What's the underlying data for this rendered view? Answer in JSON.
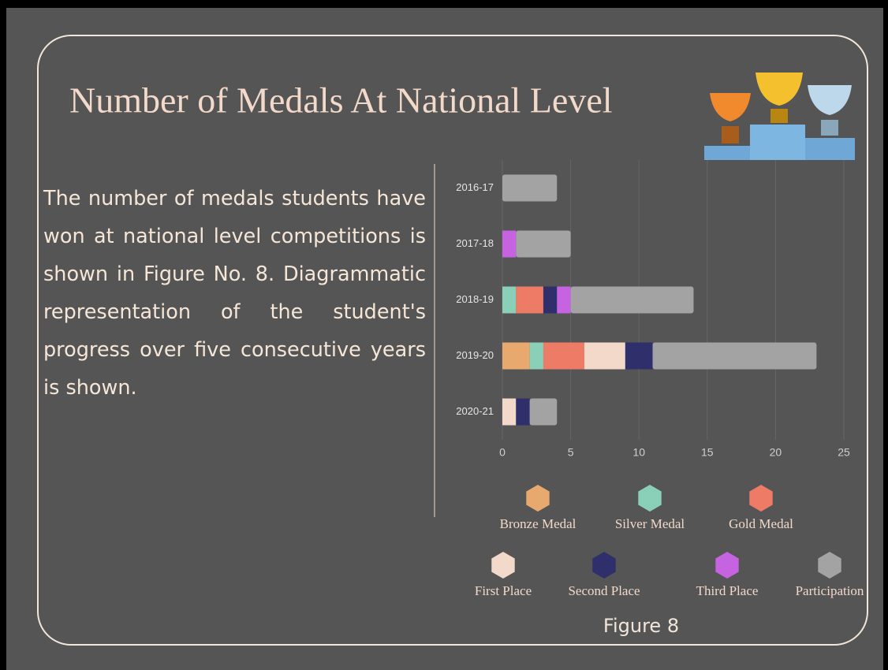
{
  "title": "Number of Medals At National Level",
  "paragraph": "The number of medals students have won at national level competitions is shown in Figure No. 8. Diagrammatic representation of the student's progress over five consecutive years is shown.",
  "caption": "Figure 8",
  "chart_data": {
    "type": "bar",
    "stacked": true,
    "categories": [
      "2016-17",
      "2017-18",
      "2018-19",
      "2019-20",
      "2020-21"
    ],
    "series": [
      {
        "name": "Bronze Medal",
        "color": "#e8a96f",
        "values": [
          0,
          0,
          0,
          2,
          0
        ]
      },
      {
        "name": "Silver Medal",
        "color": "#8ad0b8",
        "values": [
          0,
          0,
          1,
          1,
          0
        ]
      },
      {
        "name": "Gold Medal",
        "color": "#ee7b66",
        "values": [
          0,
          0,
          2,
          3,
          0
        ]
      },
      {
        "name": "First Place",
        "color": "#f2d9c9",
        "values": [
          0,
          0,
          0,
          3,
          1
        ]
      },
      {
        "name": "Second Place",
        "color": "#2e2f6b",
        "values": [
          0,
          0,
          1,
          2,
          1
        ]
      },
      {
        "name": "Third Place",
        "color": "#c663e0",
        "values": [
          0,
          1,
          1,
          0,
          0
        ]
      },
      {
        "name": "Participation",
        "color": "#a3a3a3",
        "values": [
          4,
          4,
          9,
          12,
          2
        ]
      }
    ],
    "xlim": [
      0,
      25
    ],
    "xticks": [
      0,
      5,
      10,
      15,
      20,
      25
    ],
    "grid": true
  }
}
